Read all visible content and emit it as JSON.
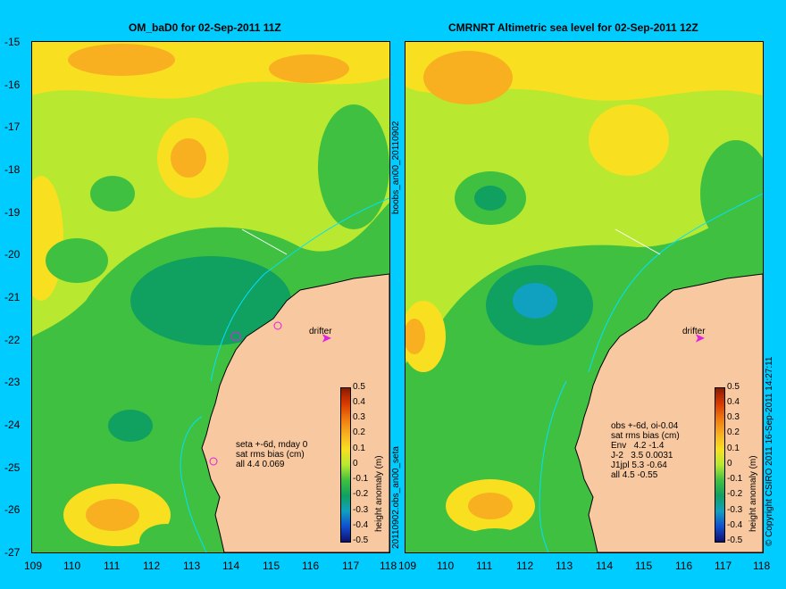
{
  "left_panel": {
    "title": "OM_baD0 for 02-Sep-2011 11Z",
    "stats": "seta +-6d, mday 0\nsat rms bias (cm)\nall 4.4 0.069",
    "drifter_label": "drifter",
    "arrow": "➤"
  },
  "right_panel": {
    "title": "CMRNRT Altimetric sea level  for 02-Sep-2011 12Z",
    "stats": "obs +-6d, oi-0.04\nsat rms bias (cm)\nEnv   4.2 -1.4\nJ-2   3.5 0.0031\nJ1jpl 5.3 -0.64\nall 4.5 -0.55",
    "drifter_label": "drifter",
    "arrow": "➤"
  },
  "side_labels": {
    "upper": "boobs_an00_20110902",
    "lower": "20110902.obs_an00_seta",
    "copyright": "© Copyright CSIRO 2011   16-Sep-2011 14:27:11"
  },
  "axes": {
    "lat_ticks": [
      "-15",
      "-16",
      "-17",
      "-18",
      "-19",
      "-20",
      "-21",
      "-22",
      "-23",
      "-24",
      "-25",
      "-26",
      "-27"
    ],
    "lon_ticks": [
      "109",
      "110",
      "111",
      "112",
      "113",
      "114",
      "115",
      "116",
      "117",
      "118"
    ]
  },
  "colorbar": {
    "label": "height anomaly (m)",
    "ticks": [
      "0.5",
      "0.4",
      "0.3",
      "0.2",
      "0.1",
      "0",
      "-0.1",
      "-0.2",
      "-0.3",
      "-0.4",
      "-0.5"
    ]
  },
  "colors": {
    "background": "#00ccff",
    "land": "#f8c8a0",
    "high": "#f8b020",
    "mid": "#b8e830",
    "low": "#40c040",
    "lower": "#10a060",
    "drifter": "#e020e0"
  }
}
